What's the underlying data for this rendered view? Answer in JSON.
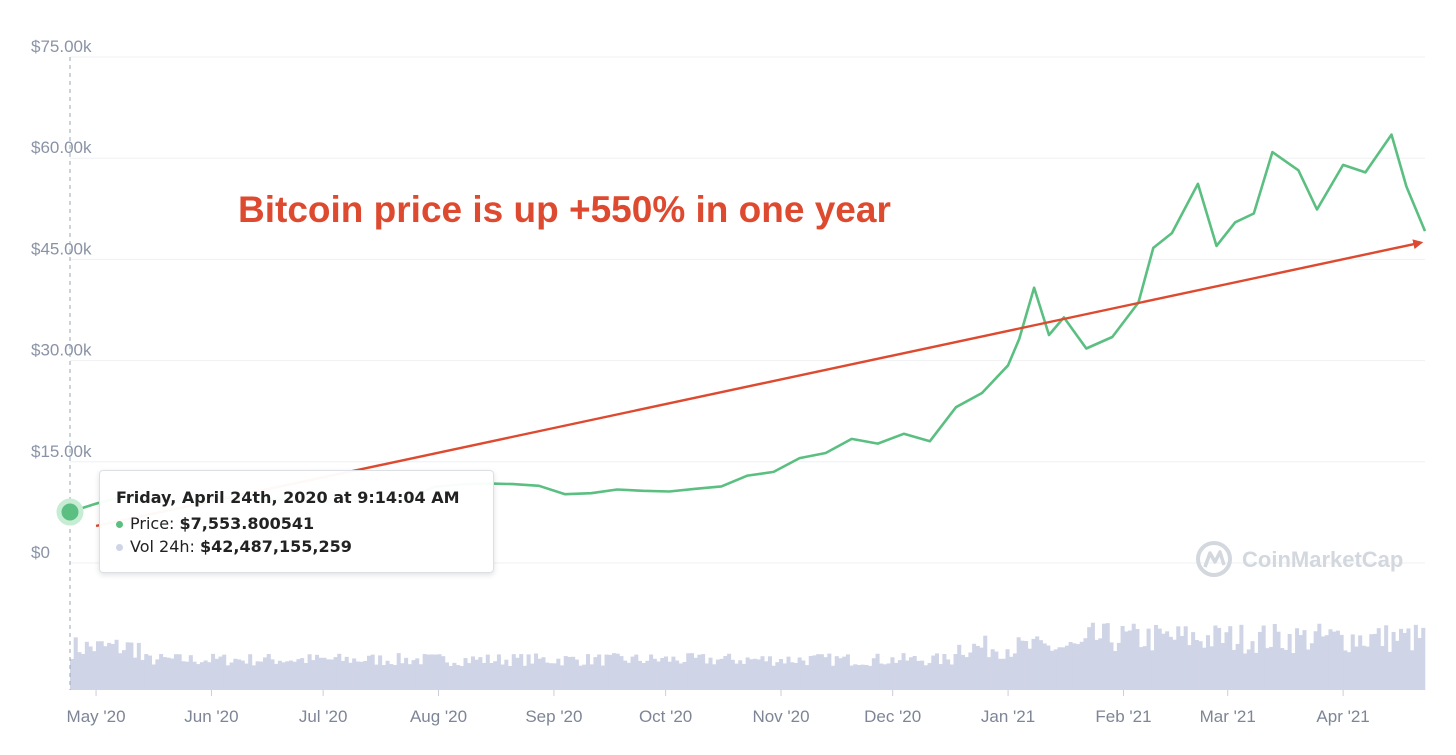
{
  "chart_data": {
    "type": "line",
    "title": "",
    "xlabel": "",
    "ylabel": "",
    "y_tick_labels": [
      "$0",
      "$15.00k",
      "$30.00k",
      "$45.00k",
      "$60.00k",
      "$75.00k"
    ],
    "x_tick_labels": [
      "May '20",
      "Jun '20",
      "Jul '20",
      "Aug '20",
      "Sep '20",
      "Oct '20",
      "Nov '20",
      "Dec '20",
      "Jan '21",
      "Feb '21",
      "Mar '21",
      "Apr '21"
    ],
    "ylim": [
      0,
      75000
    ],
    "xlim": [
      "2020-04-24",
      "2021-04-23"
    ],
    "grid": true,
    "colors": {
      "price_line": "#5bbf81",
      "volume_bars": "#cfd4e6",
      "annotation": "#dd4a2f",
      "grid": "#eef0f3"
    },
    "annotation": {
      "text": "Bitcoin price is up +550% in one year",
      "arrow": {
        "from": [
          "2020-05-01",
          5500
        ],
        "to": [
          "2021-04-22",
          47500
        ]
      }
    },
    "series": [
      {
        "type": "line",
        "x": [
          "2020-04-24",
          "2020-05-01",
          "2020-05-08",
          "2020-05-15",
          "2020-05-22",
          "2020-05-29",
          "2020-06-05",
          "2020-06-12",
          "2020-06-19",
          "2020-06-26",
          "2020-07-03",
          "2020-07-10",
          "2020-07-17",
          "2020-07-24",
          "2020-07-31",
          "2020-08-07",
          "2020-08-14",
          "2020-08-21",
          "2020-08-28",
          "2020-09-04",
          "2020-09-11",
          "2020-09-18",
          "2020-09-25",
          "2020-10-02",
          "2020-10-09",
          "2020-10-16",
          "2020-10-23",
          "2020-10-30",
          "2020-11-06",
          "2020-11-13",
          "2020-11-20",
          "2020-11-27",
          "2020-12-04",
          "2020-12-11",
          "2020-12-18",
          "2020-12-25",
          "2021-01-01",
          "2021-01-04",
          "2021-01-08",
          "2021-01-12",
          "2021-01-16",
          "2021-01-22",
          "2021-01-29",
          "2021-02-05",
          "2021-02-09",
          "2021-02-14",
          "2021-02-21",
          "2021-02-26",
          "2021-03-03",
          "2021-03-08",
          "2021-03-13",
          "2021-03-20",
          "2021-03-25",
          "2021-04-01",
          "2021-04-07",
          "2021-04-14",
          "2021-04-18",
          "2021-04-23"
        ],
        "y": [
          7553.8,
          8800,
          9800,
          9300,
          9150,
          9500,
          9700,
          9450,
          9350,
          9200,
          9100,
          9250,
          9150,
          9600,
          11300,
          11650,
          11800,
          11700,
          11450,
          10200,
          10350,
          10900,
          10700,
          10600,
          11000,
          11350,
          12950,
          13500,
          15550,
          16300,
          18400,
          17700,
          19150,
          18050,
          23100,
          25200,
          29300,
          33200,
          40800,
          33800,
          36400,
          31800,
          33500,
          38600,
          46700,
          48900,
          56200,
          47000,
          50500,
          51800,
          60900,
          58200,
          52400,
          59000,
          57900,
          63500,
          55800,
          49200
        ]
      },
      {
        "type": "bar",
        "name": "Vol 24h",
        "x_range": [
          "2020-04-24",
          "2021-04-23"
        ],
        "approx_range": [
          15000000000,
          80000000000
        ]
      }
    ],
    "tooltip": {
      "date": "Friday, April 24th, 2020 at 9:14:04 AM",
      "price_label": "Price:",
      "price_value": "$7,553.800541",
      "volume_label": "Vol 24h:",
      "volume_value": "$42,487,155,259"
    },
    "watermark": "CoinMarketCap"
  }
}
